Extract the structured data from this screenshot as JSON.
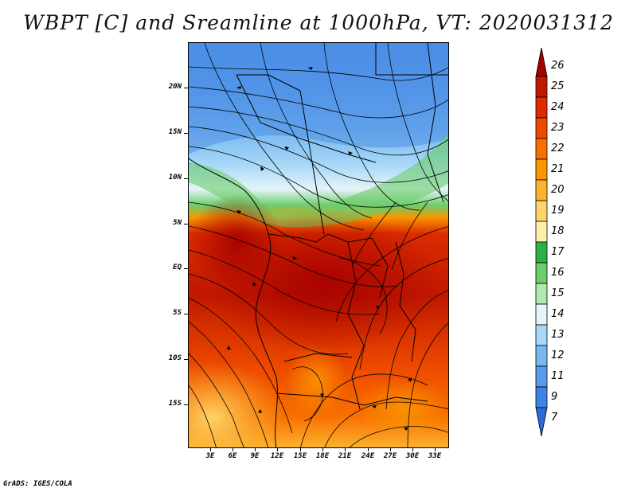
{
  "title": "WBPT [C] and Sreamline at 1000hPa, VT: 2020031312",
  "credit": "GrADS: IGES/COLA",
  "y_ticks": [
    "20N",
    "15N",
    "10N",
    "5N",
    "EQ",
    "5S",
    "10S",
    "15S"
  ],
  "x_ticks": [
    "3E",
    "6E",
    "9E",
    "12E",
    "15E",
    "18E",
    "21E",
    "24E",
    "27E",
    "30E",
    "33E"
  ],
  "colorbar": {
    "labels": [
      "26",
      "25",
      "24",
      "23",
      "22",
      "21",
      "20",
      "19",
      "18",
      "17",
      "16",
      "15",
      "14",
      "13",
      "12",
      "11",
      "9",
      "7"
    ],
    "colors": [
      "#a50000",
      "#c01800",
      "#dc2c00",
      "#ee4a00",
      "#f87000",
      "#fa9600",
      "#fcb430",
      "#fed46a",
      "#fef0a8",
      "#2eb046",
      "#6ccd6a",
      "#b0e8b0",
      "#e4f4f8",
      "#a8d8f8",
      "#78b8f0",
      "#5a9cec",
      "#3e84e4",
      "#2a6cd8"
    ]
  }
}
